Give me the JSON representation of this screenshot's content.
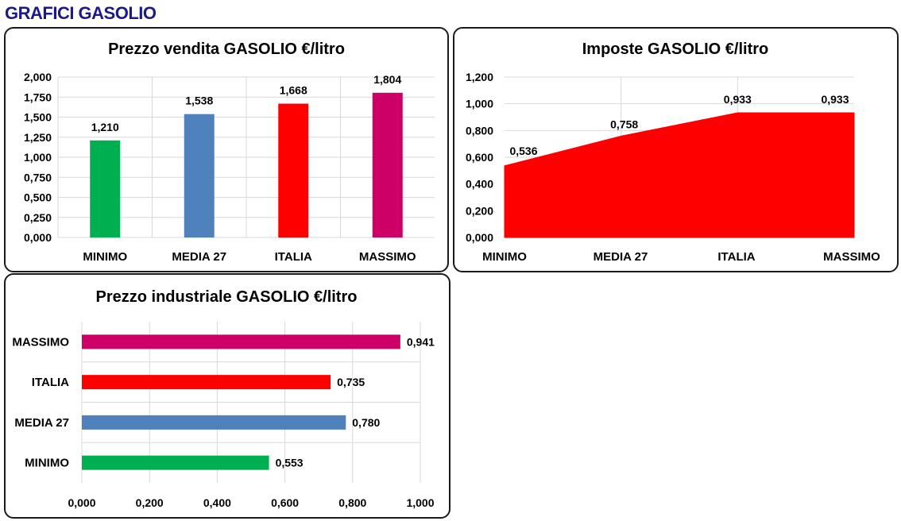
{
  "page_title": "GRAFICI GASOLIO",
  "colors": {
    "title": "#1a1a8c",
    "minimo": "#00b050",
    "media27": "#4f81bd",
    "italia": "#ff0000",
    "massimo": "#cc0066",
    "grid": "#d9d9d9"
  },
  "chart_data": [
    {
      "id": "vendita",
      "type": "bar",
      "title": "Prezzo vendita GASOLIO €/litro",
      "categories": [
        "MINIMO",
        "MEDIA 27",
        "ITALIA",
        "MASSIMO"
      ],
      "values": [
        1.21,
        1.538,
        1.668,
        1.804
      ],
      "value_labels": [
        "1,210",
        "1,538",
        "1,668",
        "1,804"
      ],
      "bar_colors": [
        "#00b050",
        "#4f81bd",
        "#ff0000",
        "#cc0066"
      ],
      "ylim": [
        0,
        2
      ],
      "yticks": [
        0,
        0.25,
        0.5,
        0.75,
        1,
        1.25,
        1.5,
        1.75,
        2
      ],
      "ytick_labels": [
        "0,000",
        "0,250",
        "0,500",
        "0,750",
        "1,000",
        "1,250",
        "1,500",
        "1,750",
        "2,000"
      ],
      "grid": true,
      "xlabel": "",
      "ylabel": ""
    },
    {
      "id": "imposte",
      "type": "area",
      "title": "Imposte GASOLIO €/litro",
      "categories": [
        "MINIMO",
        "MEDIA 27",
        "ITALIA",
        "MASSIMO"
      ],
      "values": [
        0.536,
        0.758,
        0.933,
        0.933
      ],
      "value_labels": [
        "0,536",
        "0,758",
        "0,933",
        "0,933"
      ],
      "fill_color": "#ff0000",
      "ylim": [
        0,
        1.2
      ],
      "yticks": [
        0,
        0.2,
        0.4,
        0.6,
        0.8,
        1.0,
        1.2
      ],
      "ytick_labels": [
        "0,000",
        "0,200",
        "0,400",
        "0,600",
        "0,800",
        "1,000",
        "1,200"
      ],
      "grid": true,
      "xlabel": "",
      "ylabel": ""
    },
    {
      "id": "industriale",
      "type": "bar",
      "orientation": "horizontal",
      "title": "Prezzo industriale GASOLIO €/litro",
      "categories": [
        "MINIMO",
        "MEDIA 27",
        "ITALIA",
        "MASSIMO"
      ],
      "values": [
        0.553,
        0.78,
        0.735,
        0.941
      ],
      "value_labels": [
        "0,553",
        "0,780",
        "0,735",
        "0,941"
      ],
      "bar_colors": [
        "#00b050",
        "#4f81bd",
        "#ff0000",
        "#cc0066"
      ],
      "xlim": [
        0,
        1
      ],
      "xticks": [
        0,
        0.2,
        0.4,
        0.6,
        0.8,
        1.0
      ],
      "xtick_labels": [
        "0,000",
        "0,200",
        "0,400",
        "0,600",
        "0,800",
        "1,000"
      ],
      "grid": true,
      "xlabel": "",
      "ylabel": ""
    }
  ]
}
